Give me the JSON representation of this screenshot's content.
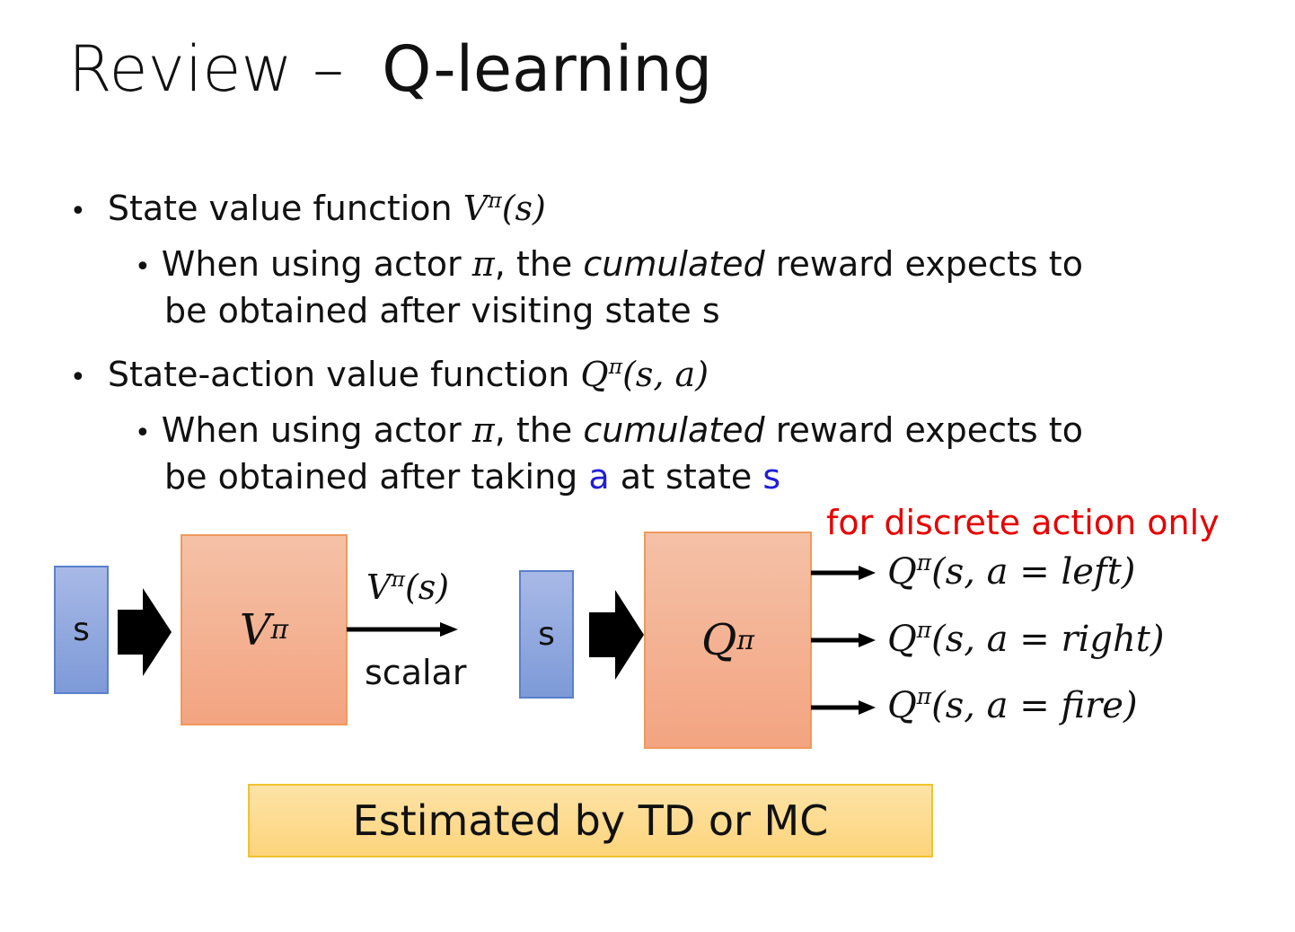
{
  "title": {
    "prefix": "Review –",
    "main": "Q-learning"
  },
  "bullets": [
    {
      "text": "State value function",
      "math": "V",
      "sup": "π",
      "args": "(s)",
      "sub": {
        "pre": "When using actor ",
        "pi": "π",
        "mid": ", the ",
        "em": "cumulated",
        "post": " reward expects to",
        "line2_pre": "be obtained after visiting state s"
      }
    },
    {
      "text": "State-action value function",
      "math": "Q",
      "sup": "π",
      "args": "(s, a)",
      "sub": {
        "pre": "When using actor ",
        "pi": "π",
        "mid": ", the ",
        "em": "cumulated",
        "post": " reward expects to",
        "line2_pre": "be obtained after taking ",
        "a": "a",
        "line2_mid": " at state ",
        "s": "s"
      }
    }
  ],
  "diagram": {
    "note": "for discrete action only",
    "v": {
      "input": "s",
      "box": "V",
      "sup": "π",
      "out_math": "V",
      "out_args": "(s)",
      "out_label": "scalar"
    },
    "q": {
      "input": "s",
      "box": "Q",
      "sup": "π",
      "outputs": [
        {
          "math": "Q",
          "args": "(s, a = left)"
        },
        {
          "math": "Q",
          "args": "(s, a = right)"
        },
        {
          "math": "Q",
          "args": "(s, a = fire)"
        }
      ]
    }
  },
  "footer": "Estimated by TD or MC",
  "colors": {
    "note": "#e60000",
    "highlight": "#1f1fd6",
    "input_box": "#8fa8dd",
    "function_box": "#f4b394",
    "footer_box": "#fdd98a"
  }
}
